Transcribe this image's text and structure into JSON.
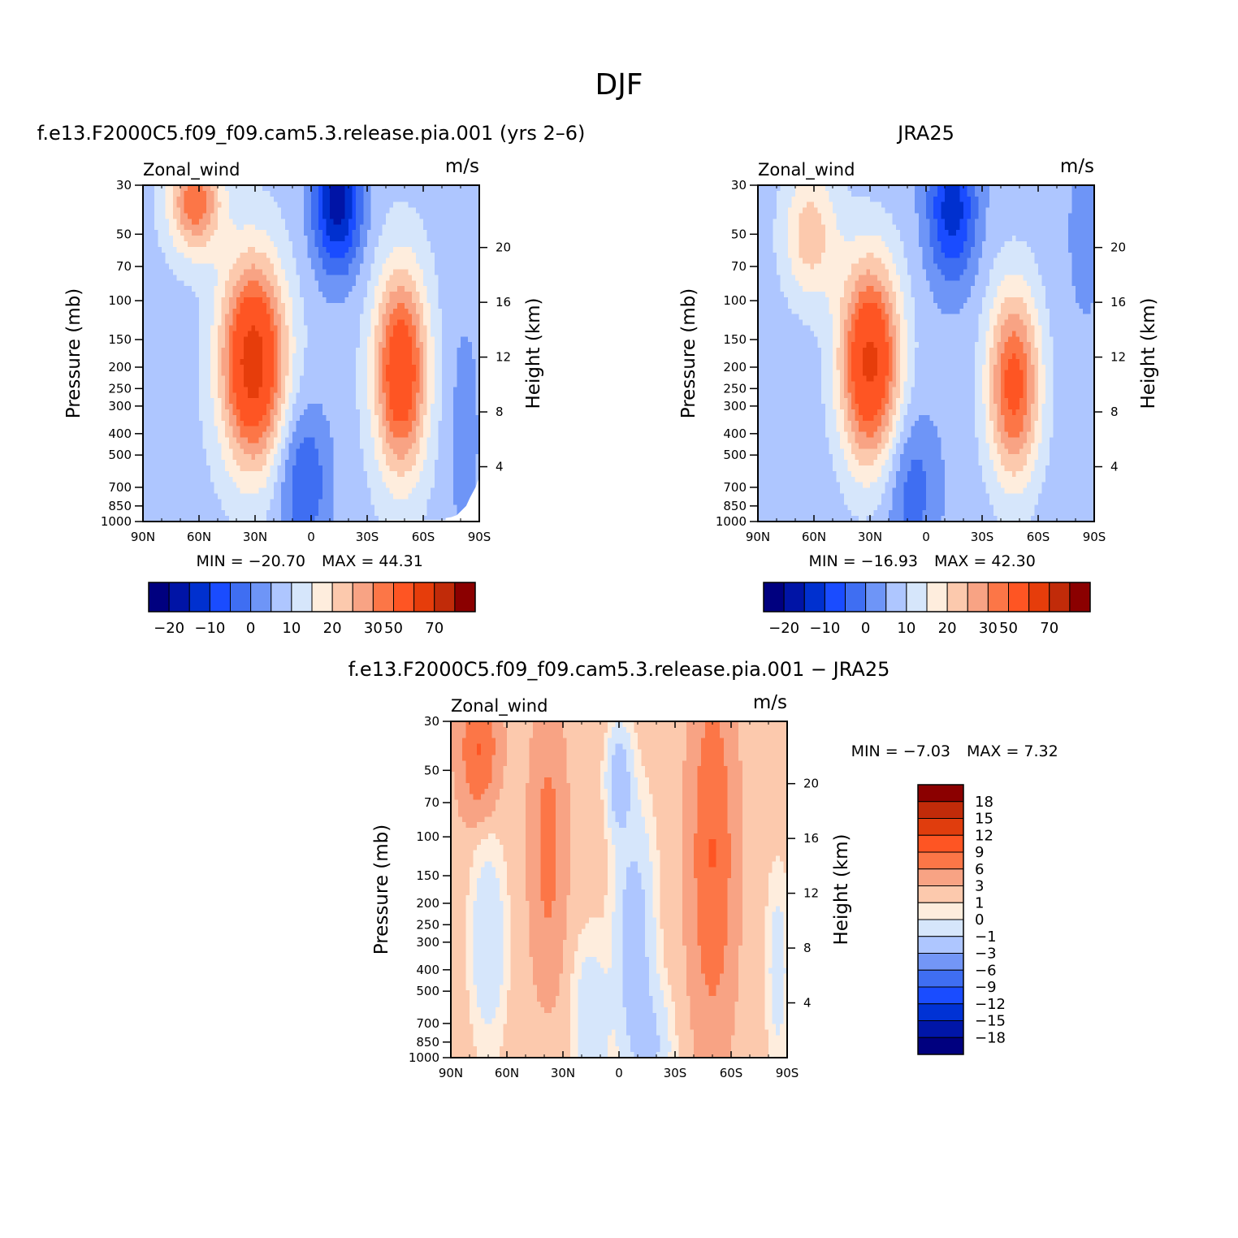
{
  "page_title": "DJF",
  "chart_data": [
    {
      "type": "heatmap",
      "panel_id": "model",
      "title": "f.e13.F2000C5.f09_f09.cam5.3.release.pia.001 (yrs 2–6)",
      "left_string": "Zonal_wind",
      "right_string": "m/s",
      "ylabel": "Pressure (mb)",
      "ylabel_right": "Height (km)",
      "x_ticks": [
        "90N",
        "60N",
        "30N",
        "0",
        "30S",
        "60S",
        "90S"
      ],
      "x_range": [
        90,
        -90
      ],
      "y_ticks": [
        30,
        50,
        70,
        100,
        150,
        200,
        250,
        300,
        400,
        500,
        700,
        850,
        1000
      ],
      "y_range": [
        30,
        1000
      ],
      "y_scale": "log",
      "height_ticks": [
        4,
        8,
        12,
        16,
        20
      ],
      "min_label": "MIN = −20.70",
      "max_label": "MAX = 44.31",
      "min": -20.7,
      "max": 44.31,
      "levels": [
        -25,
        -20,
        -15,
        -10,
        -5,
        0,
        5,
        10,
        15,
        20,
        25,
        30,
        40,
        50,
        60,
        70
      ],
      "colorbar_labels": [
        "−20",
        "−10",
        "0",
        "10",
        "20",
        "30",
        "50",
        "70"
      ],
      "colorbar_orientation": "horizontal",
      "features": [
        {
          "kind": "jet",
          "lat": 30,
          "p": 190,
          "value": 44.31
        },
        {
          "kind": "jet",
          "lat": -48,
          "p": 220,
          "value": 37
        },
        {
          "kind": "min",
          "lat": -15,
          "p": 35,
          "value": -20.7
        }
      ]
    },
    {
      "type": "heatmap",
      "panel_id": "obs",
      "title": "JRA25",
      "left_string": "Zonal_wind",
      "right_string": "m/s",
      "ylabel": "Pressure (mb)",
      "ylabel_right": "Height (km)",
      "x_ticks": [
        "90N",
        "60N",
        "30N",
        "0",
        "30S",
        "60S",
        "90S"
      ],
      "x_range": [
        90,
        -90
      ],
      "y_ticks": [
        30,
        50,
        70,
        100,
        150,
        200,
        250,
        300,
        400,
        500,
        700,
        850,
        1000
      ],
      "y_range": [
        30,
        1000
      ],
      "y_scale": "log",
      "height_ticks": [
        4,
        8,
        12,
        16,
        20
      ],
      "min_label": "MIN = −16.93",
      "max_label": "MAX = 42.30",
      "min": -16.93,
      "max": 42.3,
      "levels": [
        -25,
        -20,
        -15,
        -10,
        -5,
        0,
        5,
        10,
        15,
        20,
        25,
        30,
        40,
        50,
        60,
        70
      ],
      "colorbar_labels": [
        "−20",
        "−10",
        "0",
        "10",
        "20",
        "30",
        "50",
        "70"
      ],
      "colorbar_orientation": "horizontal"
    },
    {
      "type": "heatmap",
      "panel_id": "diff",
      "title": "f.e13.F2000C5.f09_f09.cam5.3.release.pia.001 − JRA25",
      "left_string": "Zonal_wind",
      "right_string": "m/s",
      "ylabel": "Pressure (mb)",
      "ylabel_right": "Height (km)",
      "x_ticks": [
        "90N",
        "60N",
        "30N",
        "0",
        "30S",
        "60S",
        "90S"
      ],
      "x_range": [
        90,
        -90
      ],
      "y_ticks": [
        30,
        50,
        70,
        100,
        150,
        200,
        250,
        300,
        400,
        500,
        700,
        850,
        1000
      ],
      "y_range": [
        30,
        1000
      ],
      "y_scale": "log",
      "height_ticks": [
        4,
        8,
        12,
        16,
        20
      ],
      "min_label": "MIN = −7.03",
      "max_label": "MAX = 7.32",
      "min": -7.03,
      "max": 7.32,
      "levels": [
        -18,
        -15,
        -12,
        -9,
        -6,
        -3,
        -1,
        0,
        1,
        3,
        6,
        9,
        12,
        15,
        18
      ],
      "colorbar_labels": [
        "18",
        "15",
        "12",
        "9",
        "6",
        "3",
        "1",
        "0",
        "−1",
        "−3",
        "−6",
        "−9",
        "−12",
        "−15",
        "−18"
      ],
      "colorbar_orientation": "vertical"
    }
  ],
  "palette": {
    "full_colors": [
      "#00007f",
      "#0014a6",
      "#0030cf",
      "#1a4cff",
      "#3f6ef2",
      "#6e95f7",
      "#aec6ff",
      "#d6e6fb",
      "#feeddd",
      "#fcc9ad",
      "#f8a384",
      "#fc7647",
      "#fe5523",
      "#e63d0b",
      "#c12b09",
      "#8b0000"
    ],
    "diff_colors": [
      "#00007f",
      "#0016a8",
      "#0032d5",
      "#1a4cff",
      "#3f6ef2",
      "#7396f6",
      "#aec6ff",
      "#d6e6fb",
      "#feeddd",
      "#fcc9ad",
      "#f8a384",
      "#fc7647",
      "#fe5523",
      "#e03d0d",
      "#c12b09",
      "#8b0000"
    ],
    "missing": "#ffffff"
  }
}
